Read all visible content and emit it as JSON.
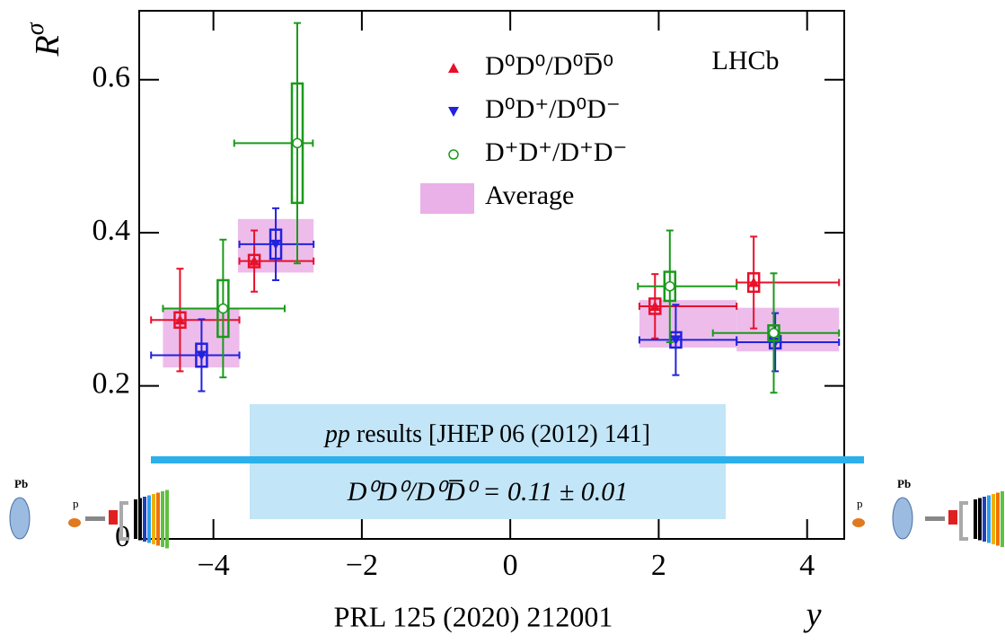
{
  "chart_data": {
    "type": "scatter",
    "ylabel": "R",
    "ylabel_sup": "σ",
    "xlabel": "y",
    "xlim": [
      -5,
      4.5
    ],
    "ylim": [
      0,
      0.69
    ],
    "xticks": [
      {
        "value": -4,
        "label": "−4"
      },
      {
        "value": -2,
        "label": "−2"
      },
      0,
      2,
      4
    ],
    "yticks": [
      0,
      0.2,
      0.4,
      0.6
    ],
    "legend": "top",
    "series": [
      {
        "name": "D⁰D⁰/D⁰D̅⁰",
        "color": "#e8102a",
        "marker": "triangle-up",
        "x": [
          -4.45,
          -3.45,
          1.95,
          3.28
        ],
        "values": [
          0.286,
          0.363,
          0.304,
          0.335
        ],
        "xlow": [
          -4.84,
          -3.65,
          1.74,
          3.05
        ],
        "xhigh": [
          -3.65,
          -2.65,
          3.05,
          4.43
        ],
        "yerr": [
          0.067,
          0.04,
          0.042,
          0.06
        ],
        "syst": [
          0.01,
          0.008,
          0.01,
          0.012
        ]
      },
      {
        "name": "D⁰D⁺/D⁰D⁻",
        "color": "#2222dd",
        "marker": "triangle-down",
        "x": [
          -4.16,
          -3.16,
          2.23,
          3.57
        ],
        "values": [
          0.24,
          0.385,
          0.26,
          0.257
        ],
        "xlow": [
          -4.84,
          -3.65,
          1.74,
          3.05
        ],
        "xhigh": [
          -3.65,
          -2.65,
          3.05,
          4.43
        ],
        "yerr": [
          0.047,
          0.047,
          0.046,
          0.038
        ],
        "syst": [
          0.015,
          0.019,
          0.01,
          0.008
        ]
      },
      {
        "name": "D⁺D⁺/D⁺D⁻",
        "color": "#1a9a1a",
        "marker": "circle",
        "x": [
          -3.87,
          -2.87,
          2.15,
          3.55
        ],
        "values": [
          0.301,
          0.517,
          0.33,
          0.269
        ],
        "xlow": [
          -4.68,
          -3.72,
          1.72,
          2.73
        ],
        "xhigh": [
          -3.04,
          -2.66,
          3.05,
          4.43
        ],
        "yerr": [
          0.09,
          0.157,
          0.073,
          0.078
        ],
        "syst": [
          0.037,
          0.078,
          0.019,
          0.01
        ]
      }
    ],
    "average": {
      "name": "Average",
      "color": "#eab0e8",
      "xlow": [
        -4.68,
        -3.67,
        1.74,
        3.05
      ],
      "xhigh": [
        -3.65,
        -2.65,
        3.05,
        4.43
      ],
      "ylow": [
        0.224,
        0.348,
        0.25,
        0.245
      ],
      "yhigh": [
        0.302,
        0.418,
        0.312,
        0.302
      ]
    },
    "experiment": "LHCb",
    "pp_italic": "pp",
    "pp_ref": "results [JHEP 06 (2012) 141]",
    "pp_formula": "D⁰D⁰/D⁰D̅⁰ = 0.11 ± 0.01",
    "reference": "PRL 125 (2020) 212001",
    "beam_left": "Pb",
    "probe_left": "p",
    "beam_right": "Pb",
    "probe_right": "p"
  }
}
